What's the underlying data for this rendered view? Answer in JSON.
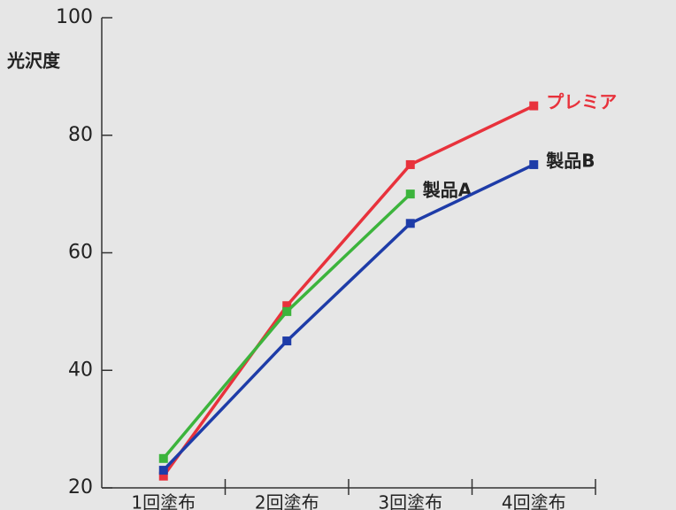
{
  "chart_data": {
    "type": "line",
    "y_label": "光沢度",
    "categories": [
      "1回塗布",
      "2回塗布",
      "3回塗布",
      "4回塗布"
    ],
    "series": [
      {
        "name": "プレミア",
        "color": "#e8323c",
        "values": [
          22,
          51,
          75,
          85
        ]
      },
      {
        "name": "製品A",
        "color": "#3cb43c",
        "values": [
          25,
          50,
          70,
          null
        ]
      },
      {
        "name": "製品B",
        "color": "#1e3ca8",
        "values": [
          23,
          45,
          65,
          75
        ]
      }
    ],
    "ylim": [
      20,
      100
    ],
    "yticks": [
      20,
      40,
      60,
      80,
      100
    ]
  }
}
